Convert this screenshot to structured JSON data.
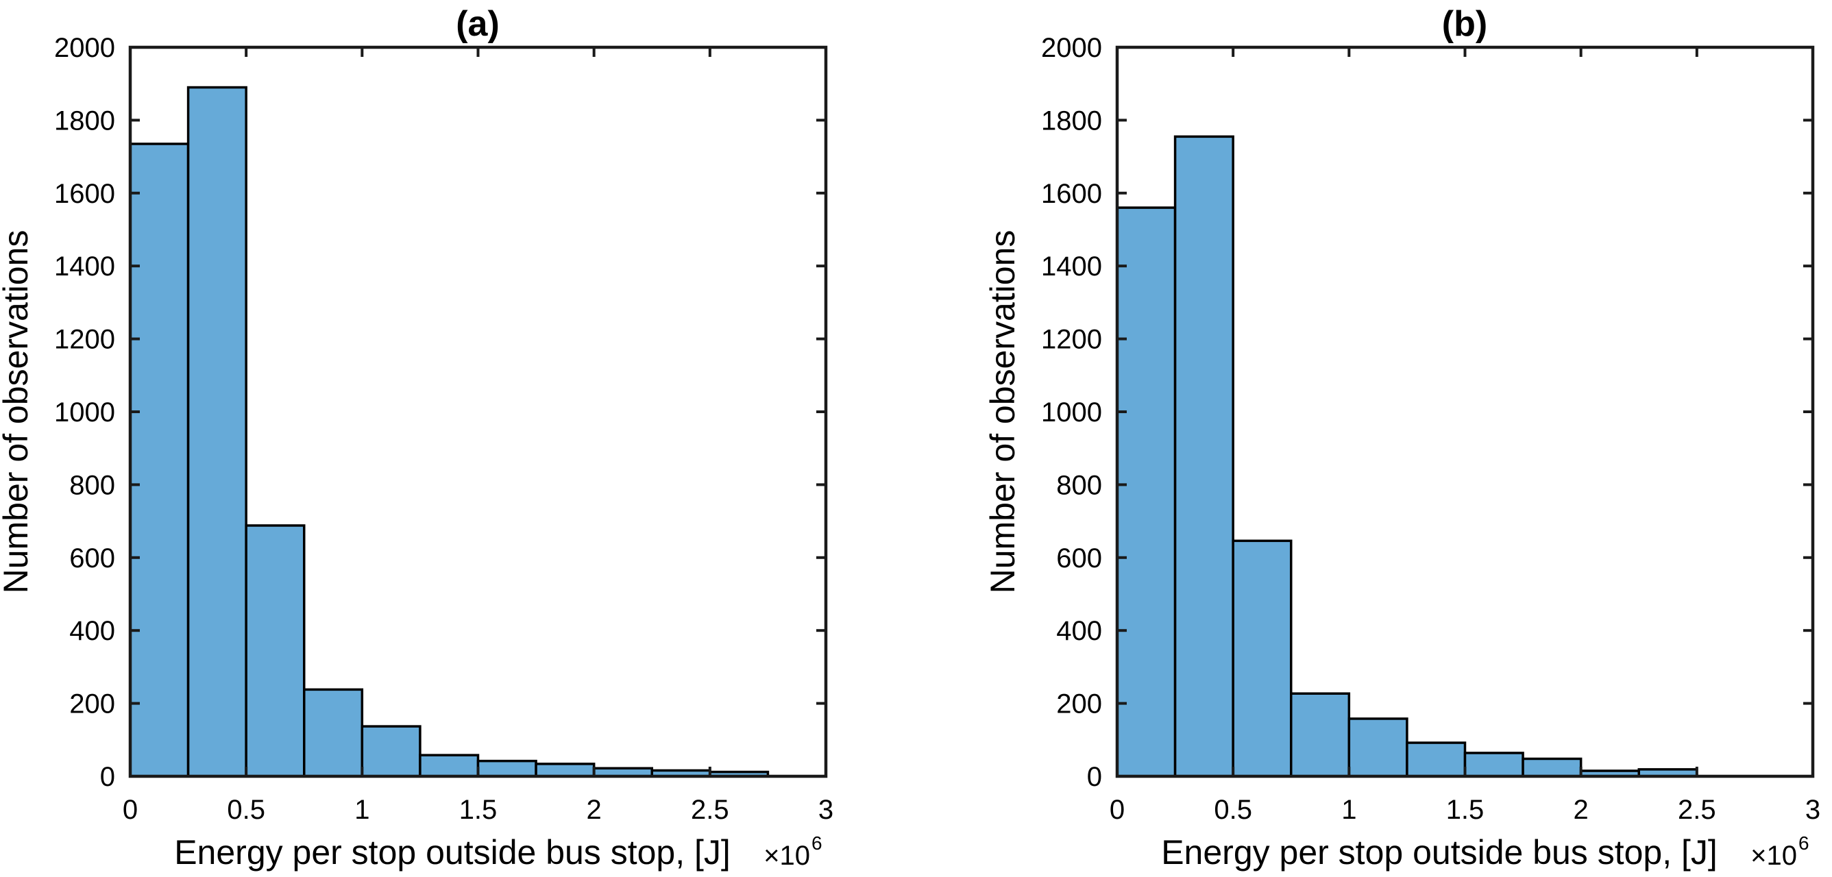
{
  "figure": {
    "background": "#ffffff",
    "colors": {
      "bar_fill": "#66AAD8",
      "bar_edge": "#000000",
      "axis": "#1a1a1a",
      "text": "#000000"
    }
  },
  "chart_data": [
    {
      "type": "bar",
      "panel": "a",
      "title": "(a)",
      "xlabel": "Energy per stop outside bus stop, [J]",
      "x_exponent_base": "×10",
      "x_exponent_power": "6",
      "ylabel": "Number of observations",
      "xlim": [
        0,
        3
      ],
      "ylim": [
        0,
        2000
      ],
      "xtick_values": [
        0,
        0.5,
        1,
        1.5,
        2,
        2.5,
        3
      ],
      "xtick_labels": [
        "0",
        "0.5",
        "1",
        "1.5",
        "2",
        "2.5",
        "3"
      ],
      "ytick_values": [
        0,
        200,
        400,
        600,
        800,
        1000,
        1200,
        1400,
        1600,
        1800,
        2000
      ],
      "ytick_labels": [
        "0",
        "200",
        "400",
        "600",
        "800",
        "1000",
        "1200",
        "1400",
        "1600",
        "1800",
        "2000"
      ],
      "bin_start": 0,
      "bin_width": 0.25,
      "values": [
        1735,
        1890,
        688,
        238,
        137,
        58,
        42,
        34,
        22,
        16,
        12
      ],
      "grid": false,
      "legend": null
    },
    {
      "type": "bar",
      "panel": "b",
      "title": "(b)",
      "xlabel": "Energy per stop outside bus stop, [J]",
      "x_exponent_base": "×10",
      "x_exponent_power": "6",
      "ylabel": "Number of observations",
      "xlim": [
        0,
        3
      ],
      "ylim": [
        0,
        2000
      ],
      "xtick_values": [
        0,
        0.5,
        1,
        1.5,
        2,
        2.5,
        3
      ],
      "xtick_labels": [
        "0",
        "0.5",
        "1",
        "1.5",
        "2",
        "2.5",
        "3"
      ],
      "ytick_values": [
        0,
        200,
        400,
        600,
        800,
        1000,
        1200,
        1400,
        1600,
        1800,
        2000
      ],
      "ytick_labels": [
        "0",
        "200",
        "400",
        "600",
        "800",
        "1000",
        "1200",
        "1400",
        "1600",
        "1800",
        "2000"
      ],
      "bin_start": 0,
      "bin_width": 0.25,
      "values": [
        1560,
        1755,
        646,
        227,
        158,
        92,
        64,
        48,
        15,
        19
      ],
      "grid": false,
      "legend": null
    }
  ]
}
